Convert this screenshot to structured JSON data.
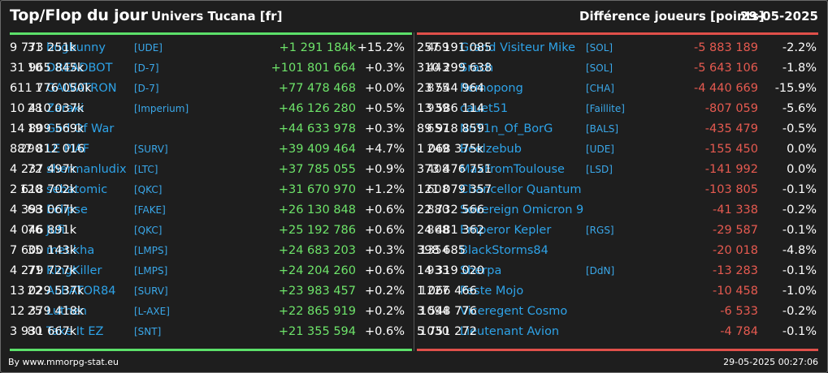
{
  "header": {
    "title": "Top/Flop du jour",
    "universe": "Univers Tucana [fr]",
    "metric": "Différence joueurs [points]",
    "date": "29-05-2025"
  },
  "colors": {
    "gain": "#6ee46a",
    "loss": "#e65a50",
    "name": "#2ea3e8",
    "accent_green": "#5ce06a",
    "accent_red": "#e0504a"
  },
  "top": [
    {
      "rank": "31",
      "name": "bugbunny",
      "tag": "[UDE]",
      "points": "9 773 251k",
      "diff": "+1 291 184k",
      "pct": "+15.2%"
    },
    {
      "rank": "10",
      "name": "DREADBOT",
      "tag": "[D-7]",
      "points": "31 965 845k",
      "diff": "+101 801 664",
      "pct": "+0.3%"
    },
    {
      "rank": "1",
      "name": "GALVATRON",
      "tag": "[D-7]",
      "points": "611 776 050k",
      "diff": "+77 478 468",
      "pct": "+0.0%"
    },
    {
      "rank": "28",
      "name": "Zaraki",
      "tag": "[Imperium]",
      "points": "10 410 037k",
      "diff": "+46 126 280",
      "pct": "+0.5%"
    },
    {
      "rank": "19",
      "name": "God Of War",
      "tag": "",
      "points": "14 809 569k",
      "diff": "+44 633 978",
      "pct": "+0.3%"
    },
    {
      "rank": "290",
      "name": "LE PIAF",
      "tag": "[SURV]",
      "points": "887 812 016",
      "diff": "+39 409 464",
      "pct": "+4.7%"
    },
    {
      "rank": "72",
      "name": "shermanludix",
      "tag": "[LTC]",
      "points": "4 237 497k",
      "diff": "+37 785 055",
      "pct": "+0.9%"
    },
    {
      "rank": "120",
      "name": "sebatomic",
      "tag": "[QKC]",
      "points": "2 618 702k",
      "diff": "+31 670 970",
      "pct": "+1.2%"
    },
    {
      "rank": "68",
      "name": "Eclipse",
      "tag": "[FAKE]",
      "points": "4 393 067k",
      "diff": "+26 130 848",
      "pct": "+0.6%"
    },
    {
      "rank": "76",
      "name": "Jufi",
      "tag": "[QKC]",
      "points": "4 046 891k",
      "diff": "+25 192 786",
      "pct": "+0.6%"
    },
    {
      "rank": "35",
      "name": "metikha",
      "tag": "[LMPS]",
      "points": "7 600 143k",
      "diff": "+24 683 203",
      "pct": "+0.3%"
    },
    {
      "rank": "71",
      "name": "KingKiller",
      "tag": "[LMPS]",
      "points": "4 279 727k",
      "diff": "+24 204 260",
      "pct": "+0.6%"
    },
    {
      "rank": "22",
      "name": "ALBATOR84",
      "tag": "[SURV]",
      "points": "13 029 537k",
      "diff": "+23 983 457",
      "pct": "+0.2%"
    },
    {
      "rank": "25",
      "name": "Luthen",
      "tag": "[L-AXE]",
      "points": "12 379 418k",
      "diff": "+22 865 919",
      "pct": "+0.2%"
    },
    {
      "rank": "80",
      "name": "Take It EZ",
      "tag": "[SNT]",
      "points": "3 931 667k",
      "diff": "+21 355 594",
      "pct": "+0.6%"
    }
  ],
  "flop": [
    {
      "rank": "469",
      "name": "Grand Visiteur Mike",
      "tag": "[SOL]",
      "points": "257 191 085",
      "diff": "-5 883 189",
      "pct": "-2.2%"
    },
    {
      "rank": "443",
      "name": "Srach",
      "tag": "[SOL]",
      "points": "310 299 638",
      "diff": "-5 643 106",
      "pct": "-1.8%"
    },
    {
      "rank": "875",
      "name": "Remopong",
      "tag": "[CHA]",
      "points": "23 544 964",
      "diff": "-4 440 669",
      "pct": "-15.9%"
    },
    {
      "rank": "939",
      "name": "cauet51",
      "tag": "[Faillite]",
      "points": "13 586 114",
      "diff": "-807 059",
      "pct": "-5.6%"
    },
    {
      "rank": "657",
      "name": "NuT1n_Of_BorG",
      "tag": "[BALS]",
      "points": "89 918 859",
      "diff": "-435 479",
      "pct": "-0.5%"
    },
    {
      "rank": "249",
      "name": "Beelzebub",
      "tag": "[UDE]",
      "points": "1 068 375k",
      "diff": "-155 450",
      "pct": "0.0%"
    },
    {
      "rank": "408",
      "name": "MaxFromToulouse",
      "tag": "[LSD]",
      "points": "373 476 751",
      "diff": "-141 992",
      "pct": "0.0%"
    },
    {
      "rank": "608",
      "name": "Chancellor Quantum",
      "tag": "",
      "points": "121 079 357",
      "diff": "-103 805",
      "pct": "-0.1%"
    },
    {
      "rank": "880",
      "name": "Sovereign Omicron 9",
      "tag": "",
      "points": "22 732 566",
      "diff": "-41 338",
      "pct": "-0.2%"
    },
    {
      "rank": "868",
      "name": "Emperor Kepler",
      "tag": "[RGS]",
      "points": "24 481 362",
      "diff": "-29 587",
      "pct": "-0.1%"
    },
    {
      "rank": "1354",
      "name": "BlackStorms84",
      "tag": "",
      "points": "398 685",
      "diff": "-20 018",
      "pct": "-4.8%"
    },
    {
      "rank": "933",
      "name": "Sherpa",
      "tag": "[DdN]",
      "points": "14 319 020",
      "diff": "-13 283",
      "pct": "-0.1%"
    },
    {
      "rank": "1227",
      "name": "Peste Mojo",
      "tag": "",
      "points": "1 066 466",
      "diff": "-10 458",
      "pct": "-1.0%"
    },
    {
      "rank": "1094",
      "name": "Viceregent Cosmo",
      "tag": "",
      "points": "3 548 776",
      "diff": "-6 533",
      "pct": "-0.2%"
    },
    {
      "rank": "1030",
      "name": "Lieutenant Avion",
      "tag": "",
      "points": "5 751 272",
      "diff": "-4 784",
      "pct": "-0.1%"
    }
  ],
  "footer": {
    "credit": "By www.mmorpg-stat.eu",
    "timestamp": "29-05-2025 00:27:06"
  }
}
